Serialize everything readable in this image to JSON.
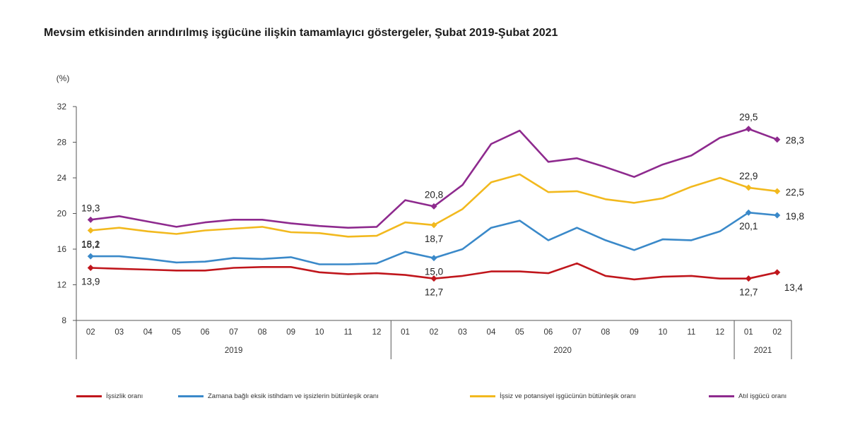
{
  "header": {
    "title": "Mevsim etkisinden arındırılmış işgücüne ilişkin tamamlayıcı göstergeler, Şubat 2019-Şubat 2021"
  },
  "chart_data": {
    "type": "line",
    "title": "Mevsim etkisinden arındırılmış işgücüne ilişkin tamamlayıcı göstergeler, Şubat 2019-Şubat 2021",
    "ylabel": "(%)",
    "ylim": [
      8,
      32
    ],
    "yticks": [
      8,
      12,
      16,
      20,
      24,
      28,
      32
    ],
    "months": [
      "02",
      "03",
      "04",
      "05",
      "06",
      "07",
      "08",
      "09",
      "10",
      "11",
      "12",
      "01",
      "02",
      "03",
      "04",
      "05",
      "06",
      "07",
      "08",
      "09",
      "10",
      "11",
      "12",
      "01",
      "02"
    ],
    "years": [
      {
        "label": "2019",
        "start": 0,
        "end": 10
      },
      {
        "label": "2020",
        "start": 11,
        "end": 22
      },
      {
        "label": "2021",
        "start": 23,
        "end": 24
      }
    ],
    "series": [
      {
        "name": "İşsizlik oranı",
        "color": "#c0161c",
        "values": [
          13.9,
          13.8,
          13.7,
          13.6,
          13.6,
          13.9,
          14.0,
          14.0,
          13.4,
          13.2,
          13.3,
          13.1,
          12.7,
          13.0,
          13.5,
          13.5,
          13.3,
          14.4,
          13.0,
          12.6,
          12.9,
          13.0,
          12.7,
          12.7,
          13.4
        ]
      },
      {
        "name": "Zamana bağlı eksik istihdam ve işsizlerin bütünleşik oranı",
        "color": "#3a89c9",
        "values": [
          15.2,
          15.2,
          14.9,
          14.5,
          14.6,
          15.0,
          14.9,
          15.1,
          14.3,
          14.3,
          14.4,
          15.7,
          15.0,
          16.0,
          18.4,
          19.2,
          17.0,
          18.4,
          17.0,
          15.9,
          17.1,
          17.0,
          18.0,
          20.1,
          19.8
        ]
      },
      {
        "name": "İşsiz ve potansiyel işgücünün bütünleşik oranı",
        "color": "#f2b91e",
        "values": [
          18.1,
          18.4,
          18.0,
          17.7,
          18.1,
          18.3,
          18.5,
          17.9,
          17.8,
          17.4,
          17.5,
          19.0,
          18.7,
          20.5,
          23.5,
          24.4,
          22.4,
          22.5,
          21.6,
          21.2,
          21.7,
          23.0,
          24.0,
          22.9,
          22.5
        ]
      },
      {
        "name": "Atıl işgücü oranı",
        "color": "#8e2a8e",
        "values": [
          19.3,
          19.7,
          19.1,
          18.5,
          19.0,
          19.3,
          19.3,
          18.9,
          18.6,
          18.4,
          18.5,
          21.5,
          20.8,
          23.2,
          27.8,
          29.3,
          25.8,
          26.2,
          25.2,
          24.1,
          25.5,
          26.5,
          28.5,
          29.5,
          28.3
        ]
      }
    ],
    "data_labels": [
      {
        "series": 0,
        "index": 0,
        "text": "13,9",
        "pos": "below"
      },
      {
        "series": 0,
        "index": 12,
        "text": "12,7",
        "pos": "below"
      },
      {
        "series": 0,
        "index": 23,
        "text": "12,7",
        "pos": "below"
      },
      {
        "series": 0,
        "index": 24,
        "text": "13,4",
        "pos": "belowright"
      },
      {
        "series": 1,
        "index": 0,
        "text": "15,2",
        "pos": "above"
      },
      {
        "series": 1,
        "index": 12,
        "text": "15,0",
        "pos": "below"
      },
      {
        "series": 1,
        "index": 23,
        "text": "20,1",
        "pos": "below"
      },
      {
        "series": 1,
        "index": 24,
        "text": "19,8",
        "pos": "right"
      },
      {
        "series": 2,
        "index": 0,
        "text": "18,1",
        "pos": "below"
      },
      {
        "series": 2,
        "index": 12,
        "text": "18,7",
        "pos": "below"
      },
      {
        "series": 2,
        "index": 23,
        "text": "22,9",
        "pos": "above"
      },
      {
        "series": 2,
        "index": 24,
        "text": "22,5",
        "pos": "right"
      },
      {
        "series": 3,
        "index": 0,
        "text": "19,3",
        "pos": "above"
      },
      {
        "series": 3,
        "index": 12,
        "text": "20,8",
        "pos": "above"
      },
      {
        "series": 3,
        "index": 23,
        "text": "29,5",
        "pos": "above"
      },
      {
        "series": 3,
        "index": 24,
        "text": "28,3",
        "pos": "right"
      }
    ],
    "legend_position": "bottom"
  }
}
